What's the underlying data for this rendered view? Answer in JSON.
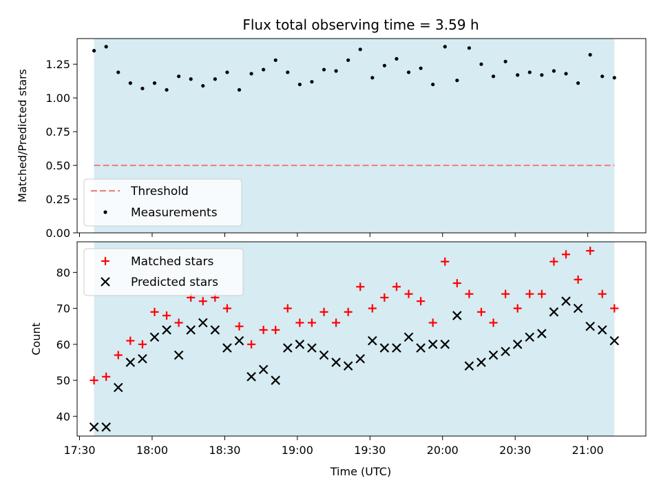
{
  "colors": {
    "span_fill": "#add8e6",
    "threshold": "#f08080",
    "measurement": "#000000",
    "matched": "#ff0000",
    "predicted": "#000000"
  },
  "chart_data": [
    {
      "type": "scatter",
      "title": "Flux total observing time = 3.59 h",
      "xlabel": "",
      "ylabel": "Matched/Predicted stars",
      "ylim": [
        0.0,
        1.44
      ],
      "yticks": [
        "0.00",
        "0.25",
        "0.50",
        "0.75",
        "1.00",
        "1.25"
      ],
      "xlim": [
        "17:29",
        "21:24"
      ],
      "observing_span": [
        "17:36",
        "21:11"
      ],
      "legend_position": "lower-left",
      "threshold": {
        "name": "Threshold",
        "value": 0.5
      },
      "series": [
        {
          "name": "Measurements",
          "marker": "dot",
          "x": [
            "17:36",
            "17:41",
            "17:46",
            "17:51",
            "17:56",
            "18:01",
            "18:06",
            "18:11",
            "18:16",
            "18:21",
            "18:26",
            "18:31",
            "18:36",
            "18:41",
            "18:46",
            "18:51",
            "18:56",
            "19:01",
            "19:06",
            "19:11",
            "19:16",
            "19:21",
            "19:26",
            "19:31",
            "19:36",
            "19:41",
            "19:46",
            "19:51",
            "19:56",
            "20:01",
            "20:06",
            "20:11",
            "20:16",
            "20:21",
            "20:26",
            "20:31",
            "20:36",
            "20:41",
            "20:46",
            "20:51",
            "20:56",
            "21:01",
            "21:06",
            "21:11"
          ],
          "y": [
            1.35,
            1.38,
            1.19,
            1.11,
            1.07,
            1.11,
            1.06,
            1.16,
            1.14,
            1.09,
            1.14,
            1.19,
            1.06,
            1.18,
            1.21,
            1.28,
            1.19,
            1.1,
            1.12,
            1.21,
            1.2,
            1.28,
            1.36,
            1.15,
            1.24,
            1.29,
            1.19,
            1.22,
            1.1,
            1.38,
            1.13,
            1.37,
            1.25,
            1.16,
            1.27,
            1.17,
            1.19,
            1.17,
            1.2,
            1.18,
            1.11,
            1.32,
            1.16,
            1.15
          ]
        }
      ]
    },
    {
      "type": "scatter",
      "xlabel": "Time (UTC)",
      "ylabel": "Count",
      "ylim": [
        34.5,
        88.5
      ],
      "yticks": [
        "40",
        "50",
        "60",
        "70",
        "80"
      ],
      "xlim": [
        "17:29",
        "21:24"
      ],
      "xticks": [
        "17:30",
        "18:00",
        "18:30",
        "19:00",
        "19:30",
        "20:00",
        "20:30",
        "21:00"
      ],
      "observing_span": [
        "17:36",
        "21:11"
      ],
      "legend_position": "upper-left",
      "series": [
        {
          "name": "Matched stars",
          "marker": "plus",
          "x": [
            "17:36",
            "17:41",
            "17:46",
            "17:51",
            "17:56",
            "18:01",
            "18:06",
            "18:11",
            "18:16",
            "18:21",
            "18:26",
            "18:31",
            "18:36",
            "18:41",
            "18:46",
            "18:51",
            "18:56",
            "19:01",
            "19:06",
            "19:11",
            "19:16",
            "19:21",
            "19:26",
            "19:31",
            "19:36",
            "19:41",
            "19:46",
            "19:51",
            "19:56",
            "20:01",
            "20:06",
            "20:11",
            "20:16",
            "20:21",
            "20:26",
            "20:31",
            "20:36",
            "20:41",
            "20:46",
            "20:51",
            "20:56",
            "21:01",
            "21:06",
            "21:11"
          ],
          "y": [
            50,
            51,
            57,
            61,
            60,
            69,
            68,
            66,
            73,
            72,
            73,
            70,
            65,
            60,
            64,
            64,
            70,
            66,
            66,
            69,
            66,
            69,
            76,
            70,
            73,
            76,
            74,
            72,
            66,
            83,
            77,
            74,
            69,
            66,
            74,
            70,
            74,
            74,
            83,
            85,
            78,
            86,
            74,
            70
          ]
        },
        {
          "name": "Predicted stars",
          "marker": "x",
          "x": [
            "17:36",
            "17:41",
            "17:46",
            "17:51",
            "17:56",
            "18:01",
            "18:06",
            "18:11",
            "18:16",
            "18:21",
            "18:26",
            "18:31",
            "18:36",
            "18:41",
            "18:46",
            "18:51",
            "18:56",
            "19:01",
            "19:06",
            "19:11",
            "19:16",
            "19:21",
            "19:26",
            "19:31",
            "19:36",
            "19:41",
            "19:46",
            "19:51",
            "19:56",
            "20:01",
            "20:06",
            "20:11",
            "20:16",
            "20:21",
            "20:26",
            "20:31",
            "20:36",
            "20:41",
            "20:46",
            "20:51",
            "20:56",
            "21:01",
            "21:06",
            "21:11"
          ],
          "y": [
            37,
            37,
            48,
            55,
            56,
            62,
            64,
            57,
            64,
            66,
            64,
            59,
            61,
            51,
            53,
            50,
            59,
            60,
            59,
            57,
            55,
            54,
            56,
            61,
            59,
            59,
            62,
            59,
            60,
            60,
            68,
            54,
            55,
            57,
            58,
            60,
            62,
            63,
            69,
            72,
            70,
            65,
            64,
            61
          ]
        }
      ]
    }
  ]
}
